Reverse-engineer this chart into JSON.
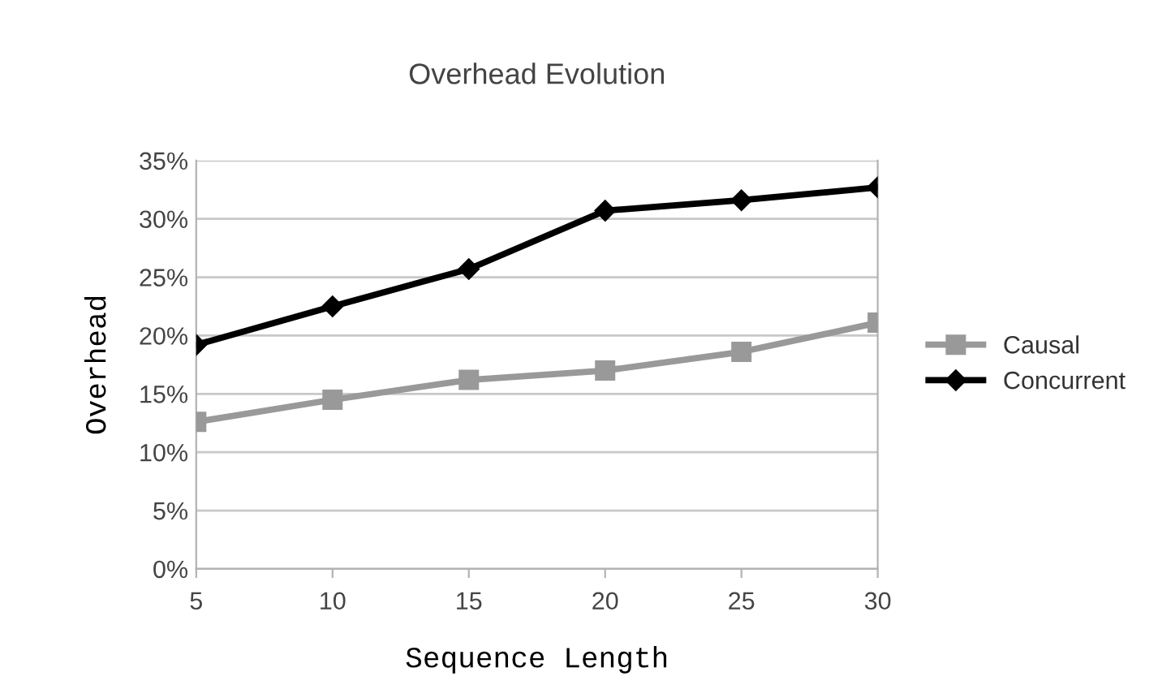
{
  "chart_data": {
    "type": "line",
    "title": "Overhead Evolution",
    "xlabel": "Sequence Length",
    "ylabel": "Overhead",
    "x": [
      5,
      10,
      15,
      20,
      25,
      30
    ],
    "series": [
      {
        "name": "Causal",
        "color": "#999999",
        "marker": "square",
        "values": [
          12.6,
          14.5,
          16.2,
          17.0,
          18.6,
          21.1
        ]
      },
      {
        "name": "Concurrent",
        "color": "#000000",
        "marker": "diamond",
        "values": [
          19.2,
          22.5,
          25.7,
          30.7,
          31.6,
          32.7
        ]
      }
    ],
    "xlim": [
      5,
      30
    ],
    "xticks": [
      5,
      10,
      15,
      20,
      25,
      30
    ],
    "ylim": [
      0,
      35
    ],
    "yticks": [
      {
        "value": 0,
        "label": "0%"
      },
      {
        "value": 5,
        "label": "5%"
      },
      {
        "value": 10,
        "label": "10%"
      },
      {
        "value": 15,
        "label": "15%"
      },
      {
        "value": 20,
        "label": "20%"
      },
      {
        "value": 25,
        "label": "25%"
      },
      {
        "value": 30,
        "label": "30%"
      },
      {
        "value": 35,
        "label": "35%"
      }
    ],
    "grid": "y",
    "legend": "right",
    "line_style": "solid"
  }
}
